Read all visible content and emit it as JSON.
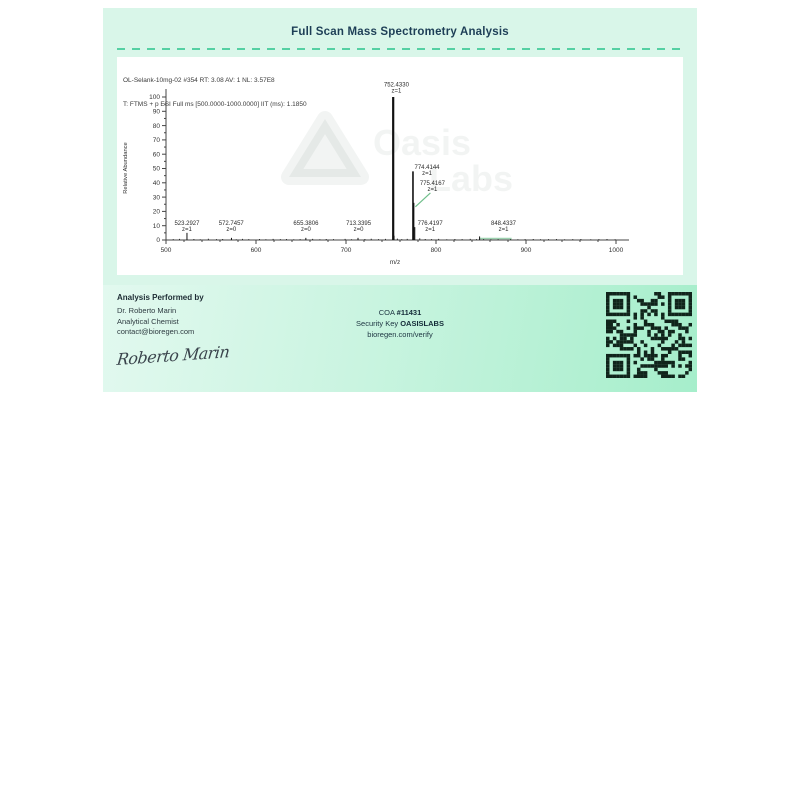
{
  "card": {
    "title": "Full Scan Mass Spectrometry Analysis",
    "colors": {
      "card_bg": "#d9f6e9",
      "title": "#1d3e56",
      "dashed_line": "#55d0a3",
      "footer_gradient_start": "#e2f9ef",
      "footer_gradient_end": "#a6eecb",
      "qr_dark": "#10241b"
    }
  },
  "chart_data": {
    "type": "line",
    "subtype": "mass-spectrum-stick-plot",
    "header_line1": "OL-Selank-10mg-02 #354 RT: 3.08 AV: 1 NL: 3.57E8",
    "header_line2": "T: FTMS + p ESI Full ms [500.0000-1000.0000] IIT (ms): 1.1850",
    "xlabel": "m/z",
    "ylabel": "Relative Abundance",
    "xlim": [
      500,
      1010
    ],
    "ylim": [
      0,
      100
    ],
    "x_major_ticks": [
      500,
      600,
      700,
      800,
      900,
      1000
    ],
    "x_minor_step": 20,
    "y_major_step": 10,
    "y_minor_step": 5,
    "grid": false,
    "peak_color": "#111111",
    "accent_green": "#4caf6e",
    "axis_color": "#444444",
    "peaks": [
      {
        "mz": 523.2927,
        "z": "z=1",
        "intensity": 5,
        "label": "523.2927",
        "label_mz": 523.3,
        "label_int": 10.5
      },
      {
        "mz": 572.7457,
        "z": "z=0",
        "intensity": 1.5,
        "label": "572.7457",
        "label_mz": 572.5,
        "label_int": 10.5
      },
      {
        "mz": 655.3806,
        "z": "z=0",
        "intensity": 1.5,
        "label": "655.3806",
        "label_mz": 655.5,
        "label_int": 10.5
      },
      {
        "mz": 713.3395,
        "z": "z=0",
        "intensity": 1.5,
        "label": "713.3395",
        "label_mz": 714,
        "label_int": 10.5
      },
      {
        "mz": 752.433,
        "z": "z=1",
        "intensity": 100,
        "label": "752.4330",
        "label_mz": 756,
        "label_int": 107.5
      },
      {
        "mz": 774.4144,
        "z": "z=1",
        "intensity": 48,
        "label": "774.4144",
        "label_mz": 790,
        "label_int": 49.5
      },
      {
        "mz": 775.4167,
        "z": "z=1",
        "intensity": 26,
        "label": "775.4167",
        "label_mz": 796,
        "label_int": 38.5,
        "leader": true
      },
      {
        "mz": 776.4197,
        "z": "z=1",
        "intensity": 9,
        "label": "776.4197",
        "label_mz": 793.5,
        "label_int": 10.5
      },
      {
        "mz": 848.4337,
        "z": "z=1",
        "intensity": 2.5,
        "label": "848.4337",
        "label_mz": 875,
        "label_int": 10.5
      }
    ],
    "noise": [
      [
        508,
        0.6
      ],
      [
        515,
        0.8
      ],
      [
        531,
        0.7
      ],
      [
        538,
        0.5
      ],
      [
        547,
        0.9
      ],
      [
        556,
        0.6
      ],
      [
        563,
        0.7
      ],
      [
        578,
        0.5
      ],
      [
        585,
        0.8
      ],
      [
        592,
        0.6
      ],
      [
        604,
        0.7
      ],
      [
        611,
        0.5
      ],
      [
        619,
        0.8
      ],
      [
        627,
        0.6
      ],
      [
        634,
        0.7
      ],
      [
        642,
        0.5
      ],
      [
        649,
        0.6
      ],
      [
        663,
        0.8
      ],
      [
        671,
        0.5
      ],
      [
        678,
        0.7
      ],
      [
        686,
        0.6
      ],
      [
        699,
        0.8
      ],
      [
        706,
        0.5
      ],
      [
        721,
        0.7
      ],
      [
        728,
        0.9
      ],
      [
        736,
        0.6
      ],
      [
        744,
        0.8
      ],
      [
        753.5,
        3
      ],
      [
        757,
        1
      ],
      [
        762,
        0.6
      ],
      [
        768,
        0.8
      ],
      [
        782,
        1.2
      ],
      [
        788,
        0.7
      ],
      [
        795,
        0.6
      ],
      [
        803,
        0.8
      ],
      [
        812,
        0.5
      ],
      [
        821,
        0.7
      ],
      [
        829,
        0.6
      ],
      [
        838,
        0.8
      ],
      [
        845,
        0.6
      ],
      [
        853,
        0.7
      ],
      [
        861,
        0.5
      ],
      [
        869,
        0.6
      ],
      [
        883,
        0.7
      ],
      [
        891,
        0.5
      ],
      [
        899,
        0.6
      ],
      [
        908,
        0.7
      ],
      [
        916,
        0.5
      ],
      [
        925,
        0.6
      ],
      [
        934,
        0.7
      ],
      [
        943,
        0.5
      ],
      [
        952,
        0.6
      ],
      [
        961,
        0.7
      ],
      [
        972,
        0.5
      ],
      [
        981,
        0.6
      ],
      [
        990,
        0.7
      ],
      [
        999,
        0.5
      ]
    ],
    "green_baseline_segment": [
      848,
      884
    ],
    "watermark": {
      "line1": "Oasis",
      "line2": "Labs"
    }
  },
  "footer": {
    "analyst": {
      "heading": "Analysis Performed by",
      "name": "Dr. Roberto Marin",
      "role": "Analytical Chemist",
      "email": "contact@bioregen.com",
      "signature": "Roberto Marin"
    },
    "verification": {
      "coa_label": "COA ",
      "coa_number": "#11431",
      "security_label": "Security Key ",
      "security_key": "OASISLABS",
      "verify_url": "bioregen.com/verify"
    },
    "qr_semantic": "verification-qr-code"
  }
}
